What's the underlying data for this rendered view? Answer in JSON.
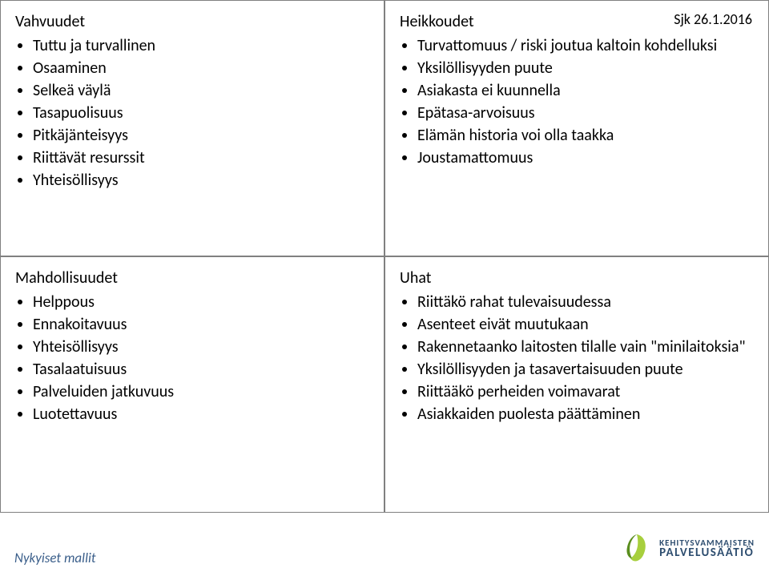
{
  "marker": "Sjk 26.1.2016",
  "quadrants": {
    "top_left": {
      "heading": "Vahvuudet",
      "items": [
        "Tuttu ja turvallinen",
        "Osaaminen",
        "Selkeä väylä",
        "Tasapuolisuus",
        "Pitkäjänteisyys",
        "Riittävät resurssit",
        "Yhteisöllisyys"
      ]
    },
    "top_right": {
      "heading": "Heikkoudet",
      "items": [
        "Turvattomuus / riski joutua kaltoin kohdelluksi",
        "Yksilöllisyyden puute",
        "Asiakasta ei kuunnella",
        "Epätasa-arvoisuus",
        "Elämän historia voi olla taakka",
        "Joustamattomuus"
      ]
    },
    "bottom_left": {
      "heading": "Mahdollisuudet",
      "items": [
        "Helppous",
        "Ennakoitavuus",
        "Yhteisöllisyys",
        "Tasalaatuisuus",
        "Palveluiden jatkuvuus",
        "Luotettavuus"
      ]
    },
    "bottom_right": {
      "heading": "Uhat",
      "items": [
        "Riittäkö rahat tulevaisuudessa",
        "Asenteet eivät muutukaan",
        "Rakennetaanko laitosten tilalle vain \"minilaitoksia\"",
        "Yksilöllisyyden ja tasavertaisuuden puute",
        "Riittääkö perheiden voimavarat",
        "Asiakkaiden puolesta päättäminen"
      ]
    }
  },
  "footer_left": "Nykyiset mallit",
  "logo": {
    "line1": "KEHITYSVAMMAISTEN",
    "line2": "PALVELUSÄÄTIÖ",
    "leaf_color_light": "#a7cf3d",
    "leaf_color_dark": "#5a8e1e",
    "text_color": "#2d4d6f"
  },
  "colors": {
    "border": "#808080",
    "text": "#000000",
    "footer_text": "#3a5e8a",
    "background": "#ffffff"
  }
}
